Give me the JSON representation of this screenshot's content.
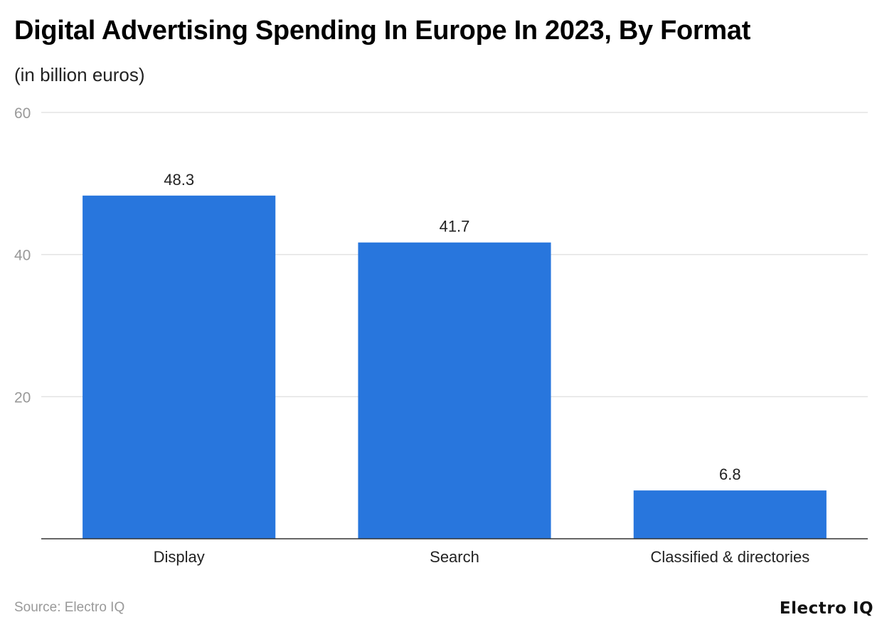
{
  "chart_data": {
    "type": "bar",
    "title": "Digital Advertising Spending In Europe In 2023, By Format",
    "subtitle": "(in billion euros)",
    "categories": [
      "Display",
      "Search",
      "Classified & directories"
    ],
    "values": [
      48.3,
      41.7,
      6.8
    ],
    "data_labels": [
      "48.3",
      "41.7",
      "6.8"
    ],
    "ylim": [
      0,
      60
    ],
    "yticks": [
      20,
      40,
      60
    ],
    "grid": true,
    "bar_color": "#2876dd"
  },
  "footer": {
    "source": "Source: Electro IQ",
    "logo": "Electro IQ"
  }
}
